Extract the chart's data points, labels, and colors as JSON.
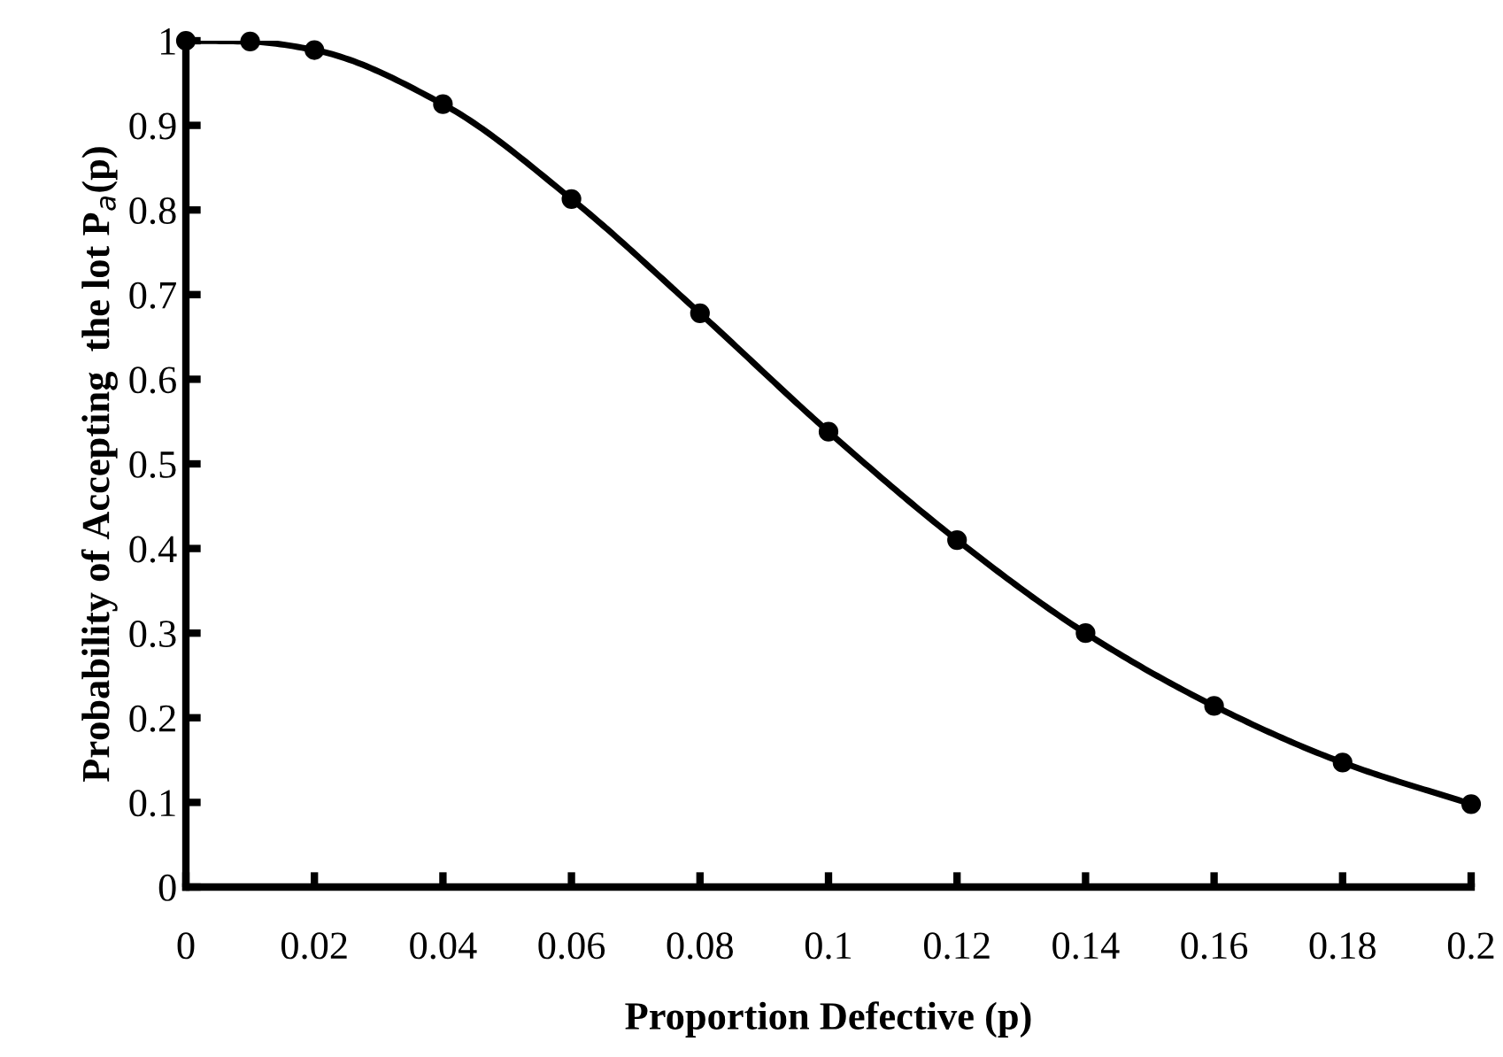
{
  "chart_data": {
    "type": "line",
    "xlabel": "Proportion Defective (p)",
    "ylabel": "Probability of Accepting  the lot P$_{a}$(p)",
    "x": [
      0,
      0.01,
      0.02,
      0.04,
      0.06,
      0.08,
      0.1,
      0.12,
      0.14,
      0.16,
      0.18,
      0.2
    ],
    "series": [
      {
        "color": "#000000",
        "values": [
          1,
          0.999,
          0.989,
          0.925,
          0.813,
          0.678,
          0.538,
          0.41,
          0.3,
          0.214,
          0.147,
          0.098
        ]
      }
    ],
    "xlim": [
      0,
      0.2
    ],
    "ylim": [
      0,
      1
    ],
    "xticks": [
      0,
      0.02,
      0.04,
      0.06,
      0.08,
      0.1,
      0.12,
      0.14,
      0.16,
      0.18,
      0.2
    ],
    "yticks": [
      0,
      0.1,
      0.2,
      0.3,
      0.4,
      0.5,
      0.6,
      0.7,
      0.8,
      0.9,
      1
    ],
    "grid": false,
    "marker": "circle",
    "line_style": "solid"
  }
}
